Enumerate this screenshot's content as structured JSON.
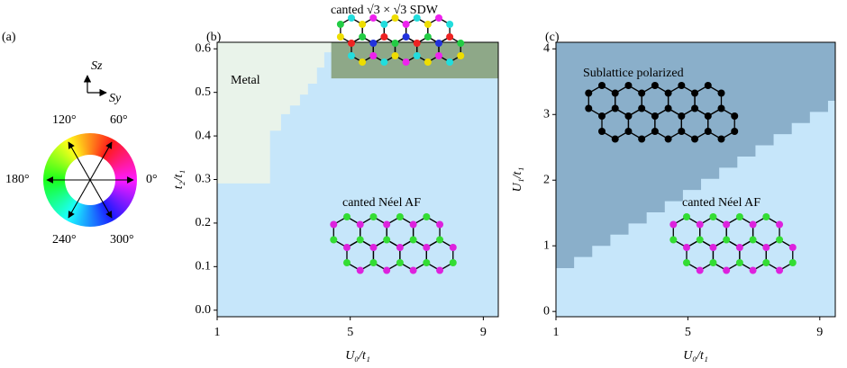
{
  "color_wheel": {
    "panel_label": "(a)",
    "axis_labels": [
      "Sz",
      "Sy"
    ],
    "angle_labels": [
      "120°",
      "60°",
      "180°",
      "0°",
      "240°",
      "300°"
    ]
  },
  "chart_data": [
    {
      "type": "phase",
      "panel_label": "(b)",
      "x_label": "U₀/t₁",
      "y_label": "t₂/t₁",
      "xlim": [
        1,
        9.45
      ],
      "ylim": [
        -0.015,
        0.615
      ],
      "xticks": [
        1,
        5,
        9
      ],
      "yticks": [
        {
          "value": 0,
          "label": "0.0"
        },
        0.1,
        0.2,
        0.3,
        0.4,
        0.5,
        0.6
      ],
      "background": {
        "name": "canted Néel AF",
        "color": "#c6e6fa"
      },
      "regions": [
        {
          "name": "Metal",
          "color": "#e9f3ea",
          "x": [
            1,
            1,
            2.59,
            2.59,
            2.92,
            2.92,
            3.19,
            3.19,
            3.49,
            3.49,
            3.73,
            3.73,
            4.0,
            4.0,
            4.22,
            4.22,
            4.43,
            4.43
          ],
          "y": [
            0.615,
            0.291,
            0.291,
            0.412,
            0.412,
            0.45,
            0.45,
            0.47,
            0.47,
            0.495,
            0.495,
            0.52,
            0.52,
            0.557,
            0.557,
            0.592,
            0.592,
            0.615
          ]
        },
        {
          "name": "canted √3 × √3 SDW",
          "color": "#8ea888",
          "x": [
            4.43,
            9.45,
            9.45,
            4.43
          ],
          "y": [
            0.532,
            0.532,
            0.615,
            0.615
          ]
        }
      ]
    },
    {
      "type": "phase",
      "panel_label": "(c)",
      "x_label": "U₀/t₁",
      "y_label": "U₁/t₁",
      "xlim": [
        1,
        9.47
      ],
      "ylim": [
        -0.08,
        4.1
      ],
      "xticks": [
        1,
        5,
        9
      ],
      "yticks": [
        0,
        1,
        2,
        3,
        4
      ],
      "background": {
        "name": "canted Néel AF",
        "color": "#c6e6fa"
      },
      "regions": [
        {
          "name": "Sublattice polarized",
          "color": "#8aafca",
          "x": [
            1,
            1,
            1.55,
            1.55,
            2.1,
            2.1,
            2.65,
            2.65,
            3.2,
            3.2,
            3.75,
            3.75,
            4.3,
            4.3,
            4.85,
            4.85,
            5.4,
            5.4,
            5.95,
            5.95,
            6.5,
            6.5,
            7.05,
            7.05,
            7.6,
            7.6,
            8.15,
            8.15,
            8.7,
            8.7,
            9.25,
            9.25,
            9.47,
            9.47
          ],
          "y": [
            4.1,
            0.66,
            0.66,
            0.83,
            0.83,
            1.0,
            1.0,
            1.17,
            1.17,
            1.34,
            1.34,
            1.51,
            1.51,
            1.68,
            1.68,
            1.85,
            1.85,
            2.02,
            2.02,
            2.19,
            2.19,
            2.36,
            2.36,
            2.53,
            2.53,
            2.7,
            2.7,
            2.87,
            2.87,
            3.04,
            3.04,
            3.21,
            3.21,
            4.1
          ]
        }
      ]
    }
  ]
}
